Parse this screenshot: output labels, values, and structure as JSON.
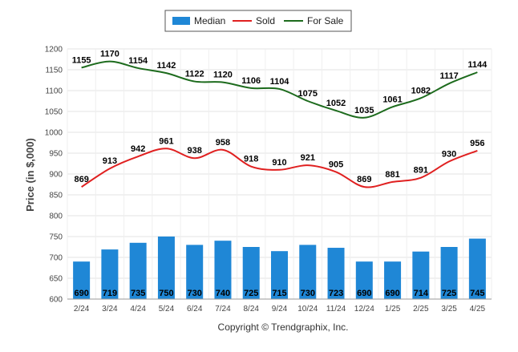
{
  "chart_data": {
    "type": "bar+line",
    "title": "",
    "xlabel": "",
    "ylabel": "Price (in $,000)",
    "ylim": [
      600,
      1200
    ],
    "yticks": [
      600,
      650,
      700,
      750,
      800,
      850,
      900,
      950,
      1000,
      1050,
      1100,
      1150,
      1200
    ],
    "grid": true,
    "legend_placement": "top-center",
    "categories": [
      "2/24",
      "3/24",
      "4/24",
      "5/24",
      "6/24",
      "7/24",
      "8/24",
      "9/24",
      "10/24",
      "11/24",
      "12/24",
      "1/25",
      "2/25",
      "3/25",
      "4/25"
    ],
    "series": [
      {
        "name": "Median",
        "kind": "bar",
        "color": "#1f87d6",
        "values": [
          690,
          719,
          735,
          750,
          730,
          740,
          725,
          715,
          730,
          723,
          690,
          690,
          714,
          725,
          745
        ]
      },
      {
        "name": "Sold",
        "kind": "line",
        "color": "#e02020",
        "values": [
          869,
          913,
          942,
          961,
          938,
          958,
          918,
          910,
          921,
          905,
          869,
          881,
          891,
          930,
          956
        ]
      },
      {
        "name": "For Sale",
        "kind": "line",
        "color": "#1d6b1d",
        "values": [
          1155,
          1170,
          1154,
          1142,
          1122,
          1120,
          1106,
          1104,
          1075,
          1052,
          1035,
          1061,
          1082,
          1117,
          1144
        ]
      }
    ]
  },
  "footer": {
    "copyright": "Copyright © Trendgraphix, Inc."
  }
}
